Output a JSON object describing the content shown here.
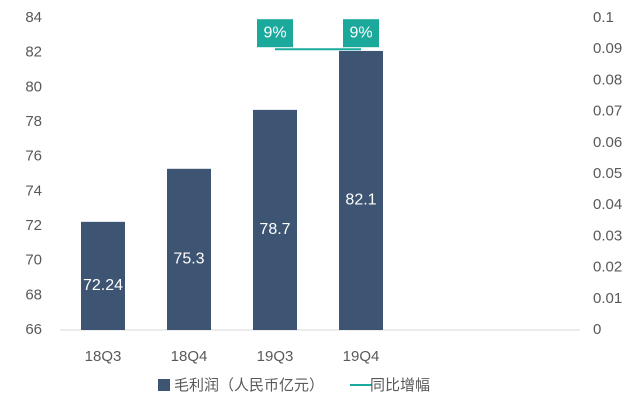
{
  "chart_data": {
    "type": "bar",
    "categories": [
      "18Q3",
      "18Q4",
      "19Q3",
      "19Q4"
    ],
    "series": [
      {
        "name": "毛利润（人民币亿元）",
        "type": "bar",
        "color": "#3d5572",
        "values": [
          72.24,
          75.3,
          78.7,
          82.1
        ]
      },
      {
        "name": "同比增幅",
        "type": "line",
        "axis": "y2",
        "color": "#1aa99b",
        "values": [
          null,
          null,
          0.09,
          0.09
        ],
        "value_labels": [
          null,
          null,
          "9%",
          "9%"
        ]
      }
    ],
    "ylim": [
      66,
      84
    ],
    "yticks": [
      66,
      68,
      70,
      72,
      74,
      76,
      78,
      80,
      82,
      84
    ],
    "y2lim": [
      0,
      0.1
    ],
    "y2ticks": [
      0,
      0.01,
      0.02,
      0.03,
      0.04,
      0.05,
      0.06,
      0.07,
      0.08,
      0.09,
      0.1
    ],
    "grid": false,
    "legend": "bottom"
  }
}
